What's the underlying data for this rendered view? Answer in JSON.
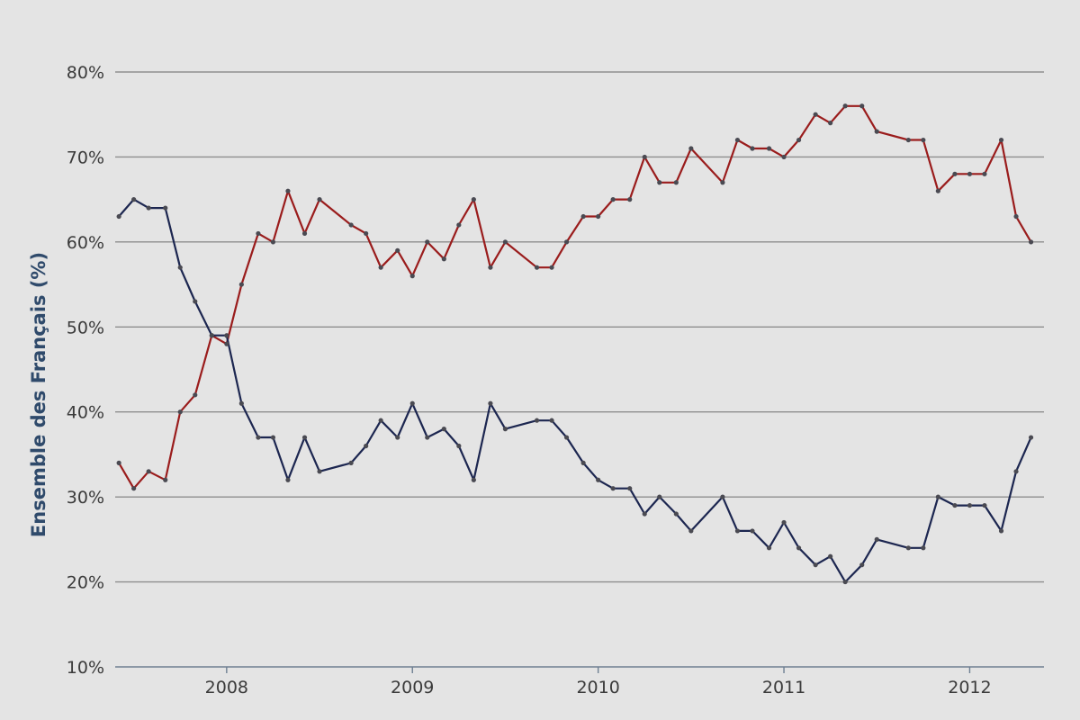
{
  "colors": {
    "background": "#e4e4e4",
    "red_series": "#9a1c1c",
    "blue_series": "#1c2650",
    "ylabel": "#2f4a6b"
  },
  "chart_data": {
    "type": "line",
    "title": "",
    "xlabel": "",
    "ylabel": "Ensemble des Français (%)",
    "ylim": [
      10,
      80
    ],
    "xlim": [
      2007.4,
      2012.4
    ],
    "y_ticks": [
      10,
      20,
      30,
      40,
      50,
      60,
      70,
      80
    ],
    "y_tick_labels": [
      "10%",
      "20%",
      "30%",
      "40%",
      "50%",
      "60%",
      "70%",
      "80%"
    ],
    "x_ticks": [
      2008,
      2009,
      2010,
      2011,
      2012
    ],
    "x_tick_labels": [
      "2008",
      "2009",
      "2010",
      "2011",
      "2012"
    ],
    "grid": "horizontal",
    "legend": "none",
    "x": [
      2007.42,
      2007.5,
      2007.58,
      2007.67,
      2007.75,
      2007.83,
      2007.92,
      2008.0,
      2008.08,
      2008.17,
      2008.25,
      2008.33,
      2008.42,
      2008.5,
      2008.67,
      2008.75,
      2008.83,
      2008.92,
      2009.0,
      2009.08,
      2009.17,
      2009.25,
      2009.33,
      2009.42,
      2009.5,
      2009.67,
      2009.75,
      2009.83,
      2009.92,
      2010.0,
      2010.08,
      2010.17,
      2010.25,
      2010.33,
      2010.42,
      2010.5,
      2010.67,
      2010.75,
      2010.83,
      2010.92,
      2011.0,
      2011.08,
      2011.17,
      2011.25,
      2011.33,
      2011.42,
      2011.5,
      2011.67,
      2011.75,
      2011.83,
      2011.92,
      2012.0,
      2012.08,
      2012.17,
      2012.25,
      2012.33
    ],
    "series": [
      {
        "color": "#9a1c1c",
        "values": [
          34,
          31,
          33,
          32,
          40,
          42,
          49,
          48,
          55,
          61,
          60,
          66,
          61,
          65,
          62,
          61,
          57,
          59,
          56,
          60,
          58,
          62,
          65,
          57,
          60,
          57,
          57,
          60,
          63,
          63,
          65,
          65,
          70,
          67,
          67,
          71,
          67,
          72,
          71,
          71,
          70,
          72,
          75,
          74,
          76,
          76,
          73,
          72,
          72,
          66,
          68,
          68,
          68,
          72,
          63,
          60
        ]
      },
      {
        "color": "#1c2650",
        "values": [
          63,
          65,
          64,
          64,
          57,
          53,
          49,
          49,
          41,
          37,
          37,
          32,
          37,
          33,
          34,
          36,
          39,
          37,
          41,
          37,
          38,
          36,
          32,
          41,
          38,
          39,
          39,
          37,
          34,
          32,
          31,
          31,
          28,
          30,
          28,
          26,
          30,
          26,
          26,
          24,
          27,
          24,
          22,
          23,
          20,
          22,
          25,
          24,
          24,
          30,
          29,
          29,
          29,
          26,
          33,
          37
        ]
      }
    ]
  }
}
